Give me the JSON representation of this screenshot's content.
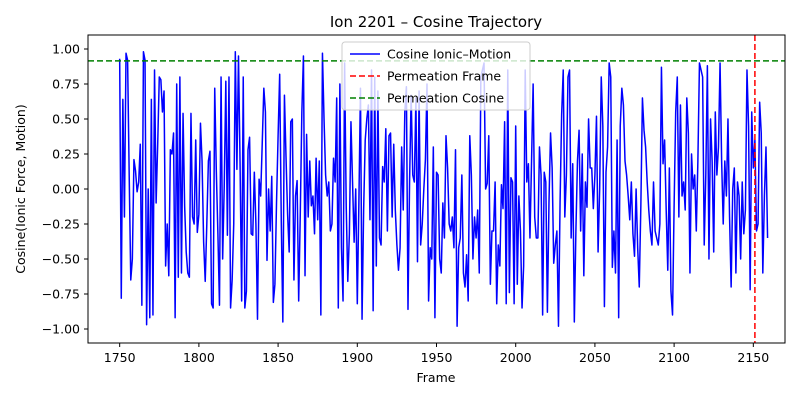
{
  "chart_data": {
    "type": "line",
    "title": "Ion 2201 – Cosine Trajectory",
    "xlabel": "Frame",
    "ylabel": "Cosine(Ionic Force, Motion)",
    "xlim": [
      1730,
      2170
    ],
    "ylim": [
      -1.1,
      1.1
    ],
    "xticks": [
      1750,
      1800,
      1850,
      1900,
      1950,
      2000,
      2050,
      2100,
      2150
    ],
    "yticks": [
      -1.0,
      -0.75,
      -0.5,
      -0.25,
      0.0,
      0.25,
      0.5,
      0.75,
      1.0
    ],
    "grid": false,
    "legend_position": "top-center",
    "series": [
      {
        "name": "Cosine Ionic–Motion",
        "color": "#0000ff",
        "style": "solid",
        "x_start": 1750,
        "x_step": 1,
        "values": [
          0.93,
          -0.78,
          0.64,
          -0.2,
          0.97,
          0.92,
          0.1,
          -0.65,
          -0.5,
          0.21,
          0.13,
          -0.02,
          0.05,
          0.32,
          -0.83,
          0.98,
          0.92,
          -0.97,
          0.0,
          -0.92,
          0.64,
          -0.9,
          0.85,
          -0.1,
          0.32,
          0.8,
          0.78,
          0.55,
          0.7,
          -0.55,
          -0.25,
          -0.62,
          0.28,
          0.25,
          0.4,
          -0.92,
          0.75,
          -0.63,
          0.8,
          -0.6,
          0.54,
          -0.12,
          -0.45,
          -0.6,
          -0.63,
          0.54,
          -0.2,
          -0.25,
          0.35,
          -0.31,
          -0.18,
          0.47,
          0.2,
          -0.38,
          -0.66,
          -0.25,
          0.2,
          0.27,
          -0.82,
          -0.85,
          0.72,
          0.13,
          -0.32,
          -0.83,
          0.8,
          -0.5,
          0.02,
          0.77,
          -0.33,
          0.8,
          -0.85,
          -0.65,
          -0.25,
          0.98,
          0.14,
          0.95,
          0.18,
          -0.8,
          0.8,
          -0.85,
          -0.73,
          0.28,
          0.37,
          -0.32,
          -0.33,
          0.12,
          -0.25,
          -0.93,
          0.07,
          -0.05,
          0.33,
          0.72,
          0.55,
          -0.51,
          0.0,
          -0.3,
          0.09,
          -0.81,
          -0.68,
          -0.1,
          0.38,
          0.82,
          -0.22,
          -0.95,
          0.67,
          0.23,
          -0.18,
          -0.45,
          0.48,
          0.5,
          -0.65,
          -0.05,
          0.06,
          -0.8,
          -0.18,
          0.55,
          0.95,
          -0.62,
          0.39,
          -0.2,
          0.2,
          -0.12,
          -0.05,
          -0.32,
          0.22,
          -0.22,
          0.2,
          -0.9,
          0.97,
          0.5,
          0.1,
          -0.05,
          0.05,
          -0.3,
          -0.25,
          0.22,
          0.05,
          0.65,
          -0.85,
          0.75,
          -0.42,
          -0.8,
          0.9,
          -0.12,
          -0.66,
          -0.32,
          0.48,
          0.05,
          -0.38,
          0.0,
          -0.82,
          -0.1,
          0.72,
          -0.93,
          -0.15,
          0.35,
          0.5,
          0.6,
          -0.22,
          0.85,
          -0.87,
          0.8,
          -0.55,
          0.7,
          -0.35,
          -0.4,
          0.16,
          0.05,
          0.43,
          -0.3,
          0.38,
          0.4,
          -0.2,
          0.32,
          -0.15,
          -0.4,
          -0.58,
          -0.42,
          0.3,
          -0.15,
          0.55,
          0.73,
          -0.86,
          0.05,
          0.67,
          0.1,
          0.05,
          0.65,
          -0.52,
          0.7,
          -0.4,
          -0.25,
          0.0,
          0.21,
          0.75,
          -0.8,
          -0.42,
          -0.5,
          0.3,
          -0.92,
          0.12,
          0.1,
          -0.5,
          -0.6,
          -0.1,
          -0.35,
          0.38,
          0.15,
          -0.25,
          -0.3,
          -0.2,
          -0.42,
          0.28,
          -0.98,
          -0.42,
          -0.35,
          0.1,
          -0.6,
          -0.7,
          -0.47,
          -0.8,
          0.38,
          0.1,
          -0.5,
          -0.2,
          -0.35,
          -0.15,
          -0.6,
          0.8,
          0.85,
          0.9,
          0.0,
          0.04,
          0.38,
          -0.68,
          -0.3,
          -0.3,
          0.05,
          -0.82,
          -0.4,
          -0.55,
          0.03,
          -0.14,
          0.48,
          -0.82,
          0.85,
          -0.74,
          0.08,
          0.05,
          -0.82,
          0.45,
          -0.68,
          -0.05,
          -0.3,
          -0.85,
          -0.55,
          0.85,
          0.05,
          0.18,
          -0.35,
          0.2,
          0.75,
          -0.2,
          -0.35,
          -0.35,
          0.3,
          0.1,
          -0.9,
          0.12,
          0.05,
          -0.88,
          -0.1,
          0.4,
          0.15,
          -0.53,
          -0.4,
          -0.3,
          -0.98,
          -0.1,
          0.53,
          0.85,
          -0.2,
          0.1,
          0.8,
          0.85,
          -0.35,
          0.18,
          -0.95,
          -0.3,
          0.2,
          0.42,
          -0.3,
          0.25,
          -0.62,
          0.05,
          -0.13,
          0.5,
          0.15,
          0.15,
          -0.14,
          0.1,
          0.52,
          -0.45,
          0.0,
          0.8,
          0.45,
          -0.84,
          0.12,
          0.3,
          0.9,
          0.8,
          -0.56,
          -0.3,
          -0.6,
          0.35,
          -0.92,
          0.45,
          0.72,
          0.6,
          0.2,
          0.1,
          -0.05,
          -0.22,
          0.05,
          -0.32,
          -0.48,
          0.0,
          -0.42,
          -0.7,
          -0.12,
          0.65,
          0.42,
          0.3,
          0.05,
          -0.15,
          -0.3,
          -0.4,
          0.05,
          -0.3,
          -0.35,
          -0.4,
          -0.25,
          0.87,
          0.18,
          0.35,
          -0.15,
          -0.58,
          0.15,
          -0.73,
          -0.9,
          -0.12,
          0.55,
          0.8,
          -0.2,
          0.6,
          -0.05,
          0.05,
          -0.15,
          0.65,
          0.4,
          -0.6,
          0.25,
          0.0,
          0.1,
          -0.3,
          0.2,
          0.9,
          0.85,
          0.8,
          -0.4,
          0.1,
          0.88,
          -0.5,
          0.5,
          0.2,
          -0.45,
          0.55,
          0.1,
          0.3,
          0.9,
          0.2,
          -0.25,
          0.2,
          -0.05,
          0.5,
          -0.2,
          -0.7,
          0.0,
          0.15,
          -0.6,
          0.05,
          -0.05,
          -0.5,
          0.05,
          -0.32,
          -0.15,
          0.85,
          0.45,
          -0.72,
          0.55,
          0.15,
          0.35,
          -0.3,
          -0.25,
          0.62,
          0.4,
          -0.6,
          -0.05,
          0.3,
          -0.35
        ]
      },
      {
        "name": "Permeation Frame",
        "color": "#ff0000",
        "style": "dashed",
        "orientation": "vertical",
        "x": 2151
      },
      {
        "name": "Permeation Cosine",
        "color": "#008000",
        "style": "dashed",
        "orientation": "horizontal",
        "y": 0.915
      }
    ]
  }
}
